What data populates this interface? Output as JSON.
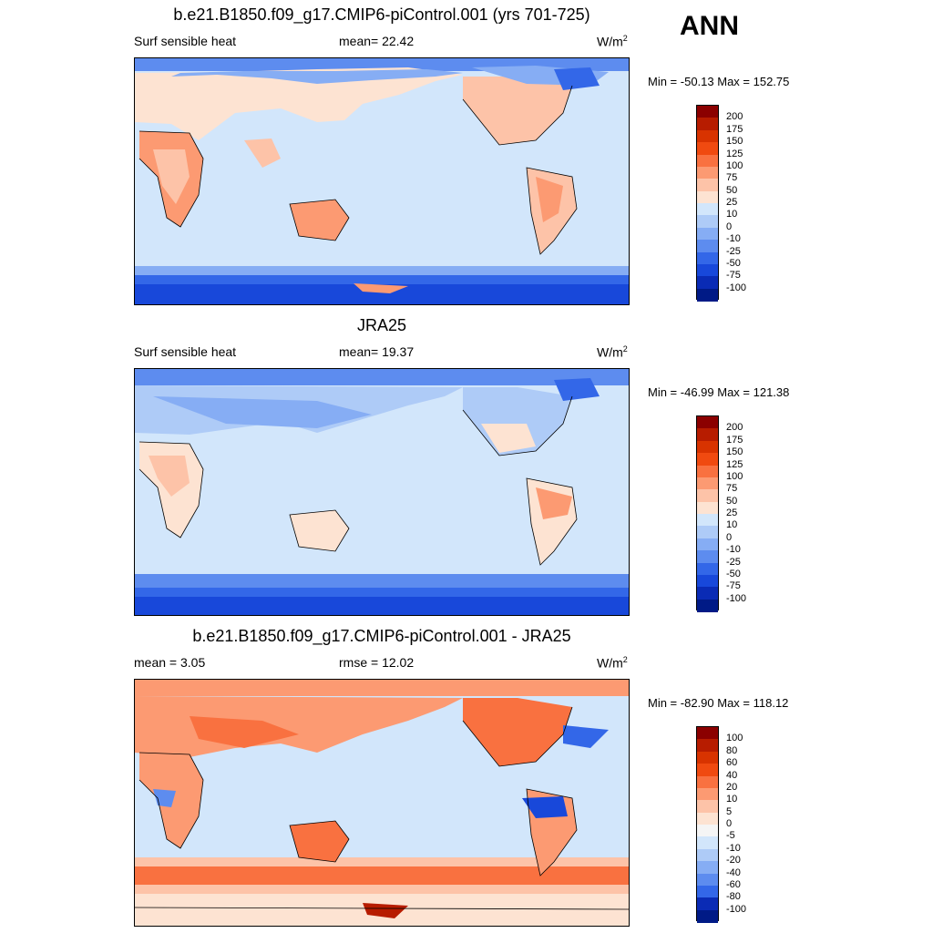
{
  "season": "ANN",
  "panels": [
    {
      "title": "b.e21.B1850.f09_g17.CMIP6-piControl.001 (yrs 701-725)",
      "left_label": "Surf sensible heat",
      "center_label": "mean=  22.42",
      "units": "W/m",
      "units_exp": "2",
      "minmax": "Min = -50.13 Max = 152.75",
      "colorbar": {
        "ticks": [
          "200",
          "175",
          "150",
          "125",
          "100",
          "75",
          "50",
          "25",
          "10",
          "0",
          "-10",
          "-25",
          "-50",
          "-75",
          "-100"
        ],
        "colors": [
          "#8b0000",
          "#b71c00",
          "#d83300",
          "#f04a10",
          "#f97140",
          "#fc9a72",
          "#fdc3a8",
          "#fde3d2",
          "#d2e6fb",
          "#aecbf7",
          "#86adf4",
          "#5d8cef",
          "#3367e8",
          "#1848da",
          "#0a2bb5",
          "#001a86"
        ]
      }
    },
    {
      "title": "JRA25",
      "left_label": "Surf sensible heat",
      "center_label": "mean=  19.37",
      "units": "W/m",
      "units_exp": "2",
      "minmax": "Min = -46.99 Max = 121.38",
      "colorbar": {
        "ticks": [
          "200",
          "175",
          "150",
          "125",
          "100",
          "75",
          "50",
          "25",
          "10",
          "0",
          "-10",
          "-25",
          "-50",
          "-75",
          "-100"
        ],
        "colors": [
          "#8b0000",
          "#b71c00",
          "#d83300",
          "#f04a10",
          "#f97140",
          "#fc9a72",
          "#fdc3a8",
          "#fde3d2",
          "#d2e6fb",
          "#aecbf7",
          "#86adf4",
          "#5d8cef",
          "#3367e8",
          "#1848da",
          "#0a2bb5",
          "#001a86"
        ]
      }
    },
    {
      "title": "b.e21.B1850.f09_g17.CMIP6-piControl.001 - JRA25",
      "left_label": "mean =   3.05",
      "center_label": "rmse =  12.02",
      "units": "W/m",
      "units_exp": "2",
      "minmax": "Min = -82.90 Max = 118.12",
      "colorbar": {
        "ticks": [
          "100",
          "80",
          "60",
          "40",
          "20",
          "10",
          "5",
          "0",
          "-5",
          "-10",
          "-20",
          "-40",
          "-60",
          "-80",
          "-100"
        ],
        "colors": [
          "#8b0000",
          "#b71c00",
          "#d83300",
          "#f04a10",
          "#f97140",
          "#fc9a72",
          "#fdc3a8",
          "#fde3d2",
          "#f5f5f5",
          "#d2e6fb",
          "#aecbf7",
          "#86adf4",
          "#5d8cef",
          "#3367e8",
          "#0a2bb5",
          "#001a86"
        ]
      }
    }
  ]
}
